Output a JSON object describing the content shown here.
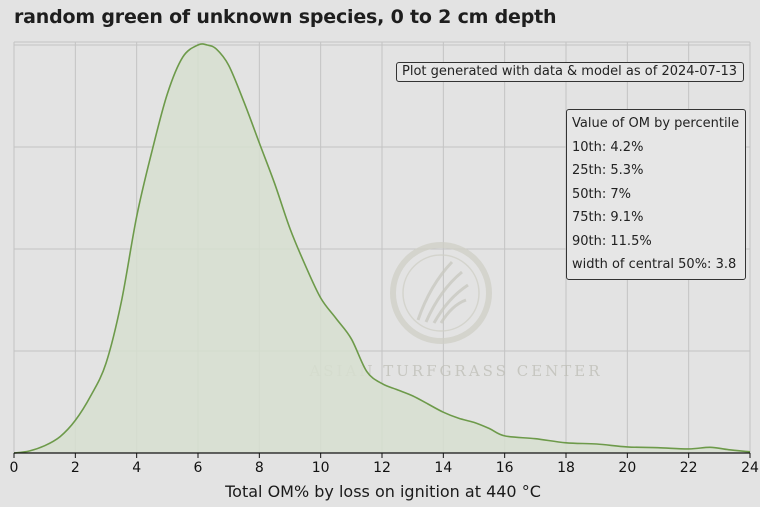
{
  "chart_data": {
    "type": "area",
    "title": "random green of unknown species, 0 to 2 cm depth",
    "xlabel": "Total OM% by loss on ignition at 440 °C",
    "ylabel": "",
    "xlim": [
      0,
      24
    ],
    "ylim": [
      0,
      1
    ],
    "x_ticks": [
      "0",
      "2",
      "4",
      "6",
      "8",
      "10",
      "12",
      "14",
      "16",
      "18",
      "20",
      "22",
      "24"
    ],
    "grid": true,
    "line_color": "#6d9a4a",
    "fill_color": "#d7dfd0",
    "series": [
      {
        "x": [
          0,
          0.5,
          1,
          1.5,
          2,
          2.5,
          3,
          3.5,
          4,
          4.5,
          5,
          5.5,
          6,
          6.3,
          6.6,
          7,
          7.5,
          8,
          8.5,
          9,
          9.5,
          10,
          10.5,
          11,
          11.5,
          12,
          12.5,
          13,
          13.5,
          14,
          14.5,
          15,
          15.5,
          16,
          17,
          18,
          19,
          20,
          21,
          22,
          22.7,
          23.3,
          24
        ],
        "y": [
          0.0,
          0.005,
          0.018,
          0.04,
          0.08,
          0.14,
          0.22,
          0.37,
          0.58,
          0.74,
          0.88,
          0.97,
          1.0,
          1.0,
          0.99,
          0.95,
          0.86,
          0.76,
          0.66,
          0.55,
          0.46,
          0.38,
          0.33,
          0.28,
          0.2,
          0.17,
          0.155,
          0.14,
          0.12,
          0.1,
          0.085,
          0.075,
          0.06,
          0.042,
          0.035,
          0.025,
          0.022,
          0.015,
          0.013,
          0.01,
          0.014,
          0.008,
          0.003
        ]
      }
    ]
  },
  "note": "Plot generated with data & model as of 2024-07-13",
  "percentiles": {
    "heading": "Value of OM by percentile",
    "p10": "10th: 4.2%",
    "p25": "25th: 5.3%",
    "p50": "50th: 7%",
    "p75": "75th: 9.1%",
    "p90": "90th: 11.5%",
    "width": "width of central 50%: 3.8"
  },
  "watermark": {
    "text": "ASIAN TURFGRASS CENTER"
  }
}
